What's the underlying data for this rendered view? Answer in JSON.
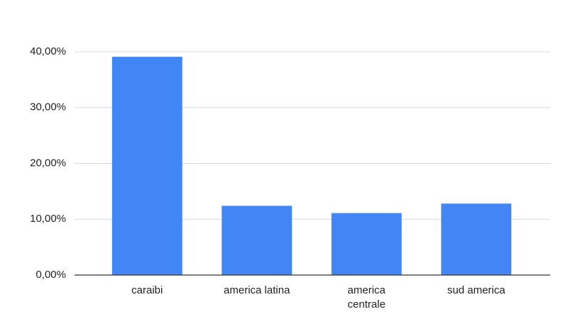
{
  "chart_data": {
    "type": "bar",
    "categories": [
      "caraibi",
      "america latina",
      "america centrale",
      "sud america"
    ],
    "values": [
      39.1,
      12.4,
      11.1,
      12.8
    ],
    "color": "#4285f4",
    "ylim": [
      0,
      40
    ],
    "yticks": [
      {
        "value": 0,
        "label": "0,00%"
      },
      {
        "value": 10,
        "label": "10,00%"
      },
      {
        "value": 20,
        "label": "20,00%"
      },
      {
        "value": 30,
        "label": "30,00%"
      },
      {
        "value": 40,
        "label": "40,00%"
      }
    ],
    "grid": true
  }
}
